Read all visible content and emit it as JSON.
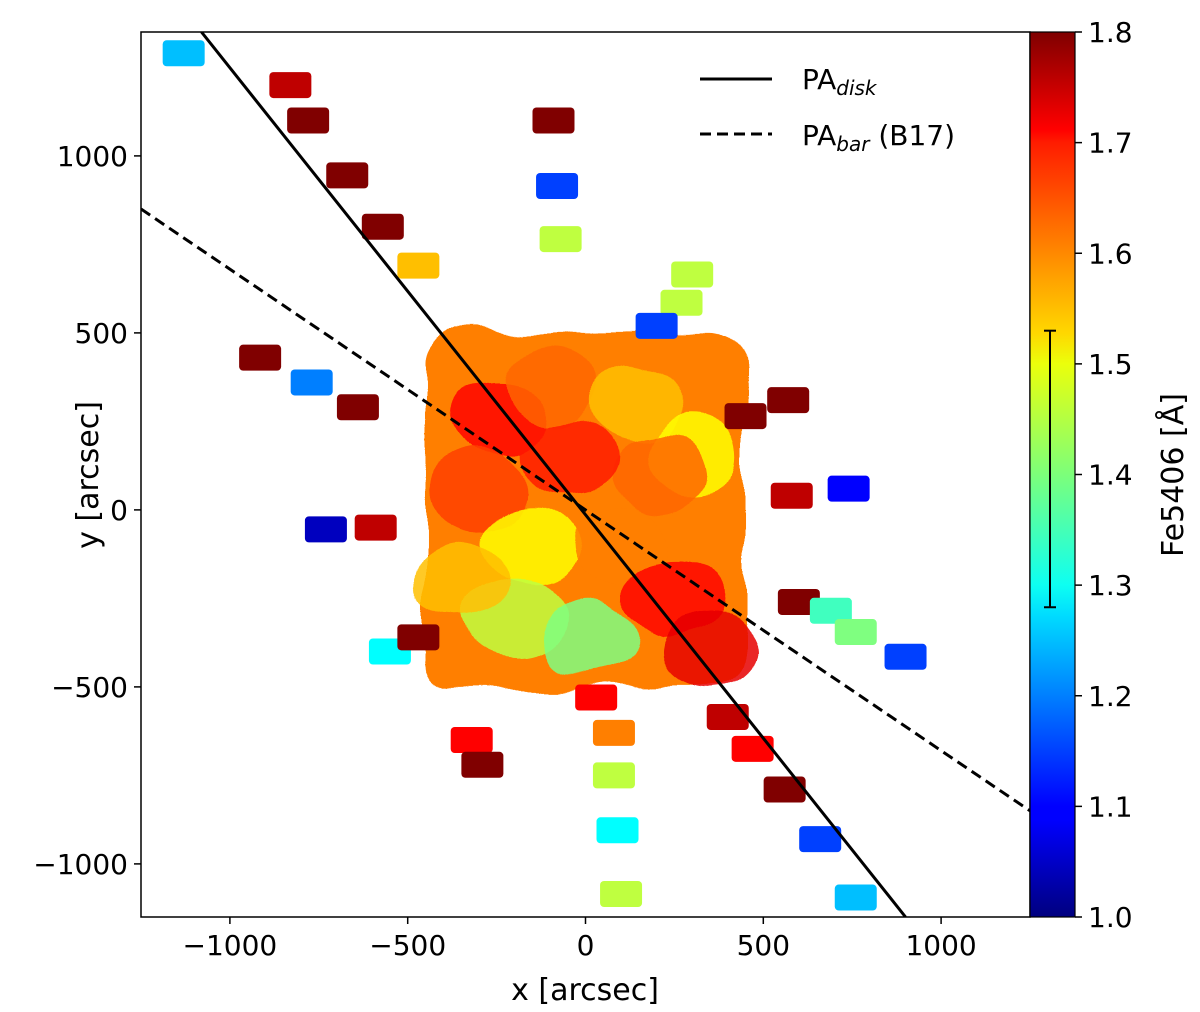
{
  "chart_data": {
    "type": "scatter",
    "title": "",
    "xlabel": "x [arcsec]",
    "ylabel": "y [arcsec]",
    "xlim": [
      -1250,
      1250
    ],
    "ylim": [
      -1150,
      1350
    ],
    "xticks": [
      -1000,
      -500,
      0,
      500,
      1000
    ],
    "xtick_labels": [
      "−1000",
      "−500",
      "0",
      "500",
      "1000"
    ],
    "yticks": [
      -1000,
      -500,
      0,
      500,
      1000
    ],
    "ytick_labels": [
      "−1000",
      "−500",
      "0",
      "500",
      "1000"
    ],
    "grid": false,
    "legend": {
      "placement": "top-right",
      "entries": [
        {
          "main": "PA",
          "sub": "disk",
          "suffix": "",
          "style": "solid"
        },
        {
          "main": "PA",
          "sub": "bar",
          "suffix": " (B17)",
          "style": "dashed"
        }
      ]
    },
    "lines": [
      {
        "name": "PA_disk",
        "style": "solid",
        "x": [
          -1080,
          900
        ],
        "y": [
          1350,
          -1150
        ]
      },
      {
        "name": "PA_bar (B17)",
        "style": "dashed",
        "x": [
          -1250,
          1250
        ],
        "y": [
          850,
          -850
        ]
      }
    ],
    "colorbar": {
      "label": "Fe5406 [Å]",
      "colormap": "jet",
      "min": 1.0,
      "max": 1.8,
      "ticks": [
        1.0,
        1.1,
        1.2,
        1.3,
        1.4,
        1.5,
        1.6,
        1.7,
        1.8
      ],
      "tick_labels": [
        "1.0",
        "1.1",
        "1.2",
        "1.3",
        "1.4",
        "1.5",
        "1.6",
        "1.7",
        "1.8"
      ],
      "errorbar": {
        "low": 1.28,
        "high": 1.53
      }
    },
    "central_region": {
      "x": [
        -450,
        450
      ],
      "y": [
        -500,
        500
      ],
      "value": 1.6
    },
    "fields": [
      {
        "x": -1130,
        "y": 1290,
        "value": 1.25
      },
      {
        "x": -830,
        "y": 1200,
        "value": 1.75
      },
      {
        "x": -780,
        "y": 1100,
        "value": 1.8
      },
      {
        "x": -670,
        "y": 945,
        "value": 1.8
      },
      {
        "x": -570,
        "y": 800,
        "value": 1.8
      },
      {
        "x": -470,
        "y": 690,
        "value": 1.55
      },
      {
        "x": -90,
        "y": 1100,
        "value": 1.8
      },
      {
        "x": -80,
        "y": 915,
        "value": 1.15
      },
      {
        "x": -70,
        "y": 765,
        "value": 1.45
      },
      {
        "x": 300,
        "y": 665,
        "value": 1.45
      },
      {
        "x": 270,
        "y": 585,
        "value": 1.45
      },
      {
        "x": 200,
        "y": 520,
        "value": 1.15
      },
      {
        "x": -915,
        "y": 430,
        "value": 1.8
      },
      {
        "x": -770,
        "y": 360,
        "value": 1.2
      },
      {
        "x": -640,
        "y": 290,
        "value": 1.8
      },
      {
        "x": -730,
        "y": -55,
        "value": 1.05
      },
      {
        "x": -590,
        "y": -50,
        "value": 1.75
      },
      {
        "x": -550,
        "y": -400,
        "value": 1.3
      },
      {
        "x": -470,
        "y": -360,
        "value": 1.8
      },
      {
        "x": -320,
        "y": -650,
        "value": 1.7
      },
      {
        "x": -290,
        "y": -720,
        "value": 1.8
      },
      {
        "x": 30,
        "y": -530,
        "value": 1.7
      },
      {
        "x": 80,
        "y": -630,
        "value": 1.6
      },
      {
        "x": 80,
        "y": -750,
        "value": 1.45
      },
      {
        "x": 90,
        "y": -905,
        "value": 1.3
      },
      {
        "x": 100,
        "y": -1085,
        "value": 1.45
      },
      {
        "x": 400,
        "y": -585,
        "value": 1.75
      },
      {
        "x": 470,
        "y": -675,
        "value": 1.7
      },
      {
        "x": 560,
        "y": -790,
        "value": 1.8
      },
      {
        "x": 660,
        "y": -930,
        "value": 1.15
      },
      {
        "x": 760,
        "y": -1095,
        "value": 1.25
      },
      {
        "x": 600,
        "y": -260,
        "value": 1.8
      },
      {
        "x": 690,
        "y": -285,
        "value": 1.35
      },
      {
        "x": 760,
        "y": -345,
        "value": 1.4
      },
      {
        "x": 900,
        "y": -415,
        "value": 1.15
      },
      {
        "x": 740,
        "y": 60,
        "value": 1.1
      },
      {
        "x": 580,
        "y": 40,
        "value": 1.75
      },
      {
        "x": 450,
        "y": 265,
        "value": 1.8
      },
      {
        "x": 570,
        "y": 310,
        "value": 1.8
      }
    ]
  }
}
